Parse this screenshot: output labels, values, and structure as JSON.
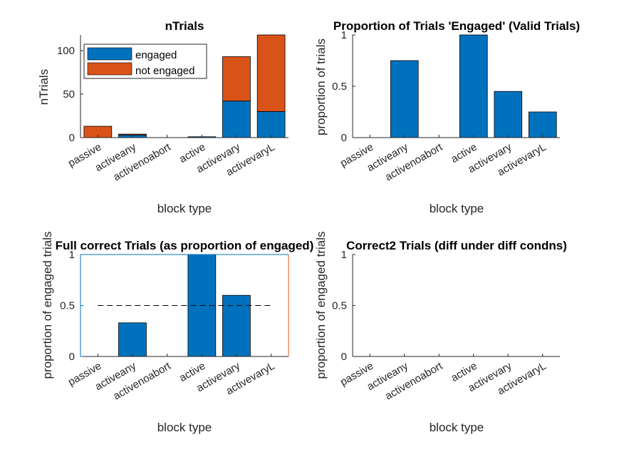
{
  "colors": {
    "engaged": "#0072BD",
    "not_engaged": "#D95319",
    "axis": "#262626",
    "axis_blue": "#0072BD",
    "right_axis": "#D95319"
  },
  "chart_data": [
    {
      "type": "bar",
      "stacked": true,
      "title": "nTrials",
      "xlabel": "block type",
      "ylabel": "nTrials",
      "categories": [
        "passive",
        "activeany",
        "activenoabort",
        "active",
        "activevary",
        "activevaryL"
      ],
      "series": [
        {
          "name": "engaged",
          "values": [
            0,
            3,
            0,
            1,
            42,
            30
          ]
        },
        {
          "name": "not engaged",
          "values": [
            13,
            1,
            0,
            0,
            51,
            88
          ]
        }
      ],
      "ylim": [
        0,
        118
      ],
      "yticks": [
        0,
        50,
        100
      ],
      "legend": "top-left"
    },
    {
      "type": "bar",
      "title": "Proportion of Trials 'Engaged' (Valid Trials)",
      "xlabel": "block type",
      "ylabel": "proportion of trials",
      "categories": [
        "passive",
        "activeany",
        "activenoabort",
        "active",
        "activevary",
        "activevaryL"
      ],
      "values": [
        0,
        0.75,
        0,
        1.0,
        0.45,
        0.25
      ],
      "ylim": [
        0,
        1
      ],
      "yticks": [
        0,
        0.5,
        1
      ]
    },
    {
      "type": "bar",
      "title": "Full correct Trials (as proportion of engaged)",
      "xlabel": "block type",
      "ylabel": "proportion of engaged trials",
      "categories": [
        "passive",
        "activeany",
        "activenoabort",
        "active",
        "activevary",
        "activevaryL"
      ],
      "values": [
        0,
        0.33,
        0,
        1.0,
        0.6,
        0
      ],
      "ylim": [
        0,
        1
      ],
      "yticks": [
        0,
        0.5,
        1
      ],
      "reference_line": 0.5
    },
    {
      "type": "bar",
      "title": "Correct2 Trials (diff under diff condns)",
      "xlabel": "block type",
      "ylabel": "proportion of engaged trials",
      "categories": [
        "passive",
        "activeany",
        "activenoabort",
        "active",
        "activevary",
        "activevaryL"
      ],
      "values": [
        0,
        0,
        0,
        0,
        0,
        0
      ],
      "ylim": [
        0,
        1
      ],
      "yticks": [
        0,
        0.5,
        1
      ]
    }
  ]
}
